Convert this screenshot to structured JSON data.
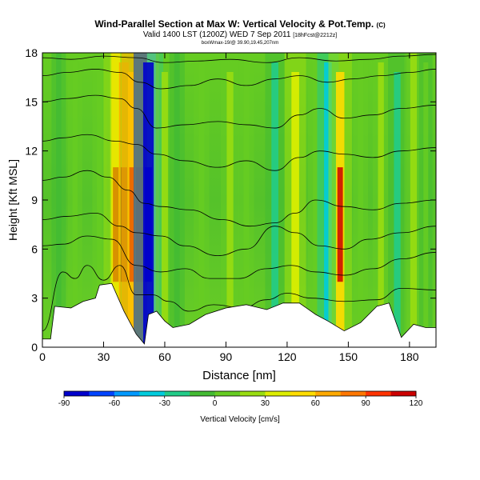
{
  "chart_data": {
    "type": "heatmap",
    "title": "Wind-Parallel Section at Max W: Vertical Velocity & Pot.Temp.",
    "title_mark": "(C)",
    "subtitle": "Valid 1400 LST (1200Z) WED 7 Sep 2011",
    "subtitle_tag": "[18hFcst@2212z]",
    "subtitle2": "boxWmax-19/@ 39.90,19.45,207nm",
    "xlabel": "Distance [nm]",
    "ylabel": "Height [Kft MSL]",
    "xlim": [
      0,
      193
    ],
    "ylim": [
      0,
      18
    ],
    "x_ticks": [
      0,
      30,
      60,
      90,
      120,
      150,
      180
    ],
    "y_ticks": [
      0,
      3,
      6,
      9,
      12,
      15,
      18
    ],
    "colorbar": {
      "label": "Vertical Velocity [cm/s]",
      "ticks": [
        -90,
        -60,
        -30,
        0,
        30,
        60,
        90,
        120
      ],
      "range": [
        -90,
        120
      ],
      "colors": [
        "#0000cc",
        "#0044ff",
        "#0099ff",
        "#00ccdd",
        "#22cc88",
        "#44bb33",
        "#66cc22",
        "#99dd11",
        "#ddee00",
        "#ffdd00",
        "#ffaa00",
        "#ff7700",
        "#ff3300",
        "#cc0000"
      ]
    },
    "columns": [
      {
        "x": 8,
        "w": -5
      },
      {
        "x": 16,
        "w": 5
      },
      {
        "x": 28,
        "w": 5
      },
      {
        "x": 36,
        "w": 55
      },
      {
        "x": 40,
        "w": 70
      },
      {
        "x": 44,
        "w": 50
      },
      {
        "x": 48,
        "w": 120
      },
      {
        "x": 52,
        "w": -80
      },
      {
        "x": 60,
        "w": 22
      },
      {
        "x": 66,
        "w": -10
      },
      {
        "x": 78,
        "w": 10
      },
      {
        "x": 92,
        "w": 25
      },
      {
        "x": 100,
        "w": 10
      },
      {
        "x": 114,
        "w": -30
      },
      {
        "x": 124,
        "w": 40
      },
      {
        "x": 134,
        "w": 10
      },
      {
        "x": 140,
        "w": -40
      },
      {
        "x": 146,
        "w": 50
      },
      {
        "x": 156,
        "w": 8
      },
      {
        "x": 166,
        "w": 15
      },
      {
        "x": 174,
        "w": -25
      },
      {
        "x": 182,
        "w": 25
      },
      {
        "x": 188,
        "w": 0
      }
    ],
    "terrain": [
      [
        0,
        0.5
      ],
      [
        4,
        0.5
      ],
      [
        6,
        2.5
      ],
      [
        14,
        2.4
      ],
      [
        20,
        2.8
      ],
      [
        26,
        3.0
      ],
      [
        28,
        3.8
      ],
      [
        34,
        3.9
      ],
      [
        40,
        2.2
      ],
      [
        46,
        0.8
      ],
      [
        50,
        0.2
      ],
      [
        52,
        2.0
      ],
      [
        56,
        2.2
      ],
      [
        60,
        1.6
      ],
      [
        64,
        1.2
      ],
      [
        72,
        1.4
      ],
      [
        80,
        2.0
      ],
      [
        90,
        2.4
      ],
      [
        100,
        2.6
      ],
      [
        110,
        2.3
      ],
      [
        118,
        2.7
      ],
      [
        126,
        2.7
      ],
      [
        134,
        2.0
      ],
      [
        140,
        1.6
      ],
      [
        148,
        1.0
      ],
      [
        156,
        1.5
      ],
      [
        164,
        2.5
      ],
      [
        170,
        2.7
      ],
      [
        176,
        0.6
      ],
      [
        182,
        1.4
      ],
      [
        188,
        1.2
      ],
      [
        193,
        1.2
      ]
    ],
    "contours": [
      [
        [
          0,
          1.0
        ],
        [
          10,
          4.6
        ],
        [
          16,
          4.2
        ],
        [
          22,
          5.0
        ],
        [
          30,
          4.1
        ],
        [
          38,
          5.0
        ],
        [
          46,
          3.2
        ],
        [
          54,
          3.2
        ],
        [
          62,
          2.8
        ],
        [
          72,
          2.2
        ],
        [
          84,
          2.6
        ],
        [
          98,
          2.4
        ],
        [
          110,
          2.9
        ],
        [
          120,
          3.3
        ],
        [
          132,
          3.0
        ],
        [
          148,
          2.8
        ],
        [
          164,
          2.9
        ],
        [
          176,
          3.6
        ],
        [
          193,
          3.5
        ]
      ],
      [
        [
          0,
          6.2
        ],
        [
          10,
          6.3
        ],
        [
          22,
          6.8
        ],
        [
          34,
          6.6
        ],
        [
          46,
          5.0
        ],
        [
          58,
          4.6
        ],
        [
          70,
          4.8
        ],
        [
          82,
          4.2
        ],
        [
          96,
          4.2
        ],
        [
          110,
          4.8
        ],
        [
          122,
          5.0
        ],
        [
          134,
          4.6
        ],
        [
          148,
          4.4
        ],
        [
          162,
          4.8
        ],
        [
          176,
          5.4
        ],
        [
          193,
          5.8
        ]
      ],
      [
        [
          0,
          7.8
        ],
        [
          12,
          8.0
        ],
        [
          26,
          8.2
        ],
        [
          38,
          7.4
        ],
        [
          46,
          7.0
        ],
        [
          58,
          6.8
        ],
        [
          70,
          6.2
        ],
        [
          86,
          5.6
        ],
        [
          100,
          6.0
        ],
        [
          114,
          7.4
        ],
        [
          124,
          7.0
        ],
        [
          136,
          6.2
        ],
        [
          148,
          6.0
        ],
        [
          160,
          6.6
        ],
        [
          176,
          7.0
        ],
        [
          193,
          7.4
        ]
      ],
      [
        [
          0,
          10.2
        ],
        [
          10,
          10.4
        ],
        [
          22,
          10.8
        ],
        [
          32,
          10.4
        ],
        [
          42,
          9.6
        ],
        [
          50,
          8.8
        ],
        [
          58,
          8.6
        ],
        [
          72,
          8.4
        ],
        [
          88,
          7.8
        ],
        [
          102,
          7.4
        ],
        [
          114,
          7.6
        ],
        [
          124,
          8.2
        ],
        [
          134,
          9.0
        ],
        [
          148,
          8.6
        ],
        [
          162,
          8.4
        ],
        [
          176,
          8.8
        ],
        [
          193,
          9.0
        ]
      ],
      [
        [
          0,
          12.6
        ],
        [
          10,
          12.8
        ],
        [
          22,
          13.0
        ],
        [
          36,
          12.6
        ],
        [
          46,
          12.4
        ],
        [
          56,
          11.8
        ],
        [
          70,
          11.4
        ],
        [
          86,
          11.0
        ],
        [
          100,
          11.4
        ],
        [
          114,
          10.8
        ],
        [
          126,
          11.6
        ],
        [
          136,
          12.0
        ],
        [
          148,
          11.8
        ],
        [
          162,
          11.6
        ],
        [
          176,
          12.0
        ],
        [
          193,
          12.2
        ]
      ],
      [
        [
          0,
          15.0
        ],
        [
          12,
          15.2
        ],
        [
          26,
          15.4
        ],
        [
          38,
          15.2
        ],
        [
          46,
          14.6
        ],
        [
          56,
          13.4
        ],
        [
          70,
          13.6
        ],
        [
          86,
          13.8
        ],
        [
          100,
          13.6
        ],
        [
          114,
          13.4
        ],
        [
          126,
          14.2
        ],
        [
          136,
          14.6
        ],
        [
          148,
          14.0
        ],
        [
          162,
          14.2
        ],
        [
          176,
          14.6
        ],
        [
          193,
          14.8
        ]
      ],
      [
        [
          0,
          16.6
        ],
        [
          12,
          16.8
        ],
        [
          26,
          17.0
        ],
        [
          38,
          16.8
        ],
        [
          48,
          16.2
        ],
        [
          58,
          15.8
        ],
        [
          72,
          16.0
        ],
        [
          86,
          16.4
        ],
        [
          100,
          16.0
        ],
        [
          114,
          16.4
        ],
        [
          126,
          16.6
        ],
        [
          140,
          16.2
        ],
        [
          152,
          16.4
        ],
        [
          166,
          16.6
        ],
        [
          180,
          16.8
        ],
        [
          193,
          17.0
        ]
      ],
      [
        [
          0,
          17.7
        ],
        [
          14,
          17.6
        ],
        [
          30,
          17.8
        ],
        [
          46,
          17.7
        ],
        [
          60,
          17.4
        ],
        [
          76,
          17.5
        ],
        [
          92,
          17.6
        ],
        [
          110,
          17.4
        ],
        [
          126,
          17.7
        ],
        [
          144,
          17.5
        ],
        [
          160,
          17.6
        ],
        [
          176,
          17.8
        ],
        [
          193,
          17.9
        ]
      ]
    ]
  }
}
